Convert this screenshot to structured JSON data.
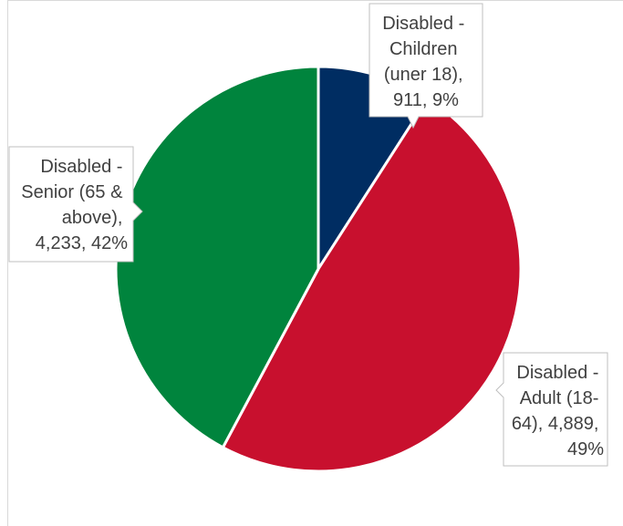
{
  "chart_data": {
    "type": "pie",
    "title": "",
    "legend": "none",
    "slices": [
      {
        "name": "Disabled - Children (uner 18)",
        "value": 911,
        "percent": 9,
        "color": "#002d62",
        "label_lines": [
          "Disabled -",
          "Children",
          "(uner 18),",
          "911, 9%"
        ]
      },
      {
        "name": "Disabled - Adult (18-64)",
        "value": 4889,
        "percent": 49,
        "color": "#c8102e",
        "label_lines": [
          "Disabled -",
          "Adult (18-",
          "64), 4,889,",
          "49%"
        ]
      },
      {
        "name": "Disabled - Senior (65 & above)",
        "value": 4233,
        "percent": 42,
        "color": "#00843d",
        "label_lines": [
          "Disabled -",
          "Senior (65 &",
          "above),",
          "4,233, 42%"
        ]
      }
    ]
  }
}
